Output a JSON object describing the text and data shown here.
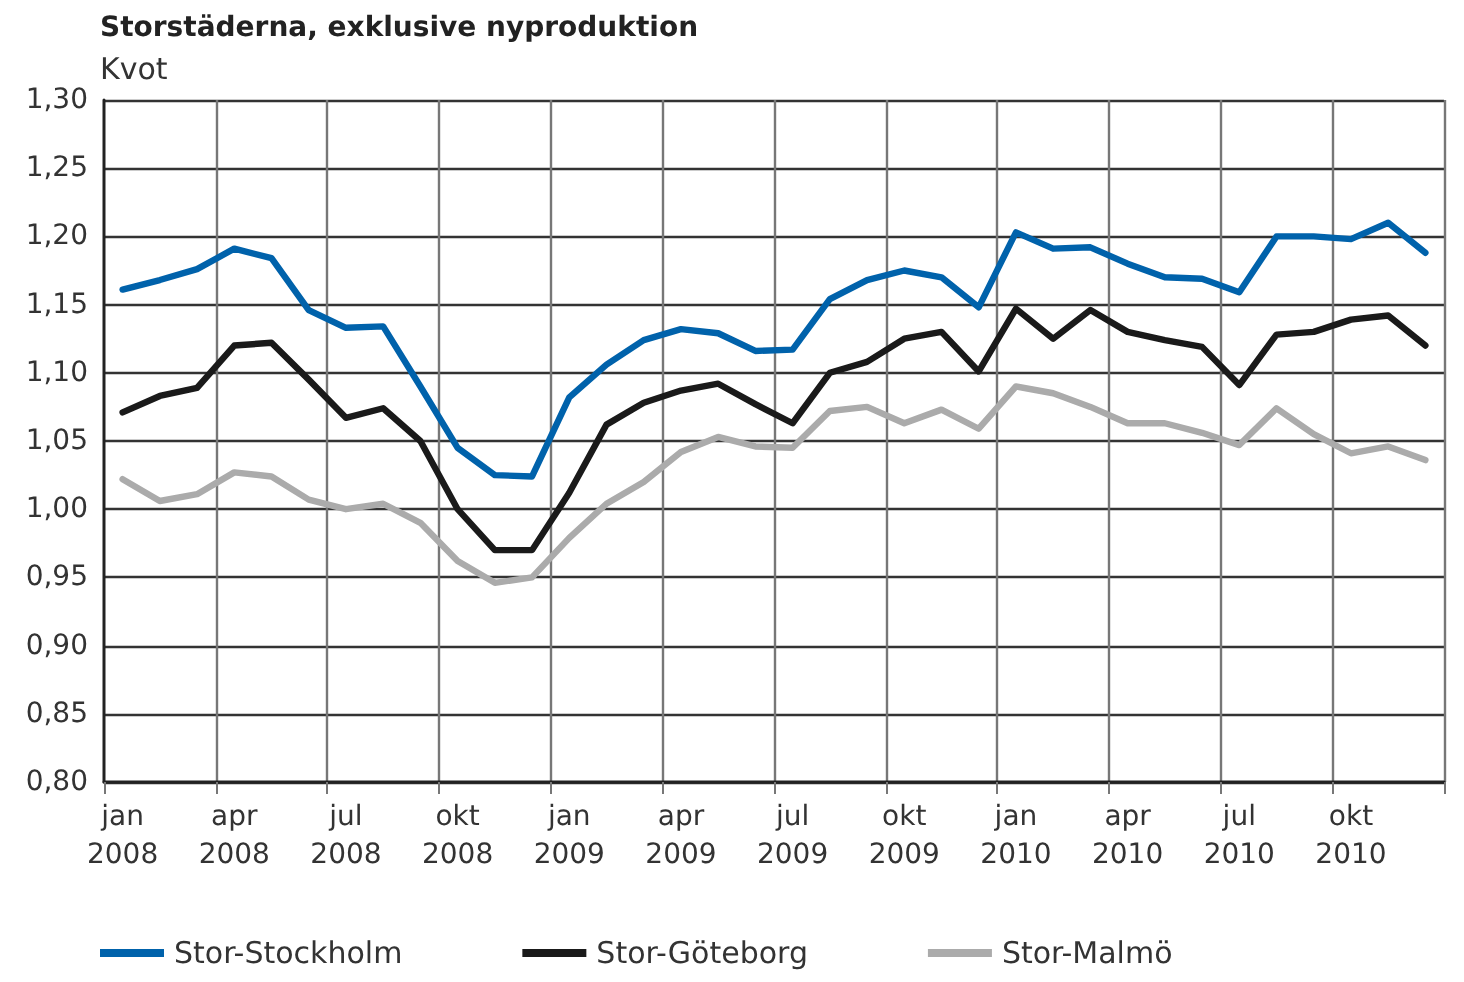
{
  "chart_data": {
    "type": "line",
    "title": "Storstäderna, exklusive nyproduktion",
    "ylabel": "Kvot",
    "categories": [
      "jan\n2008",
      null,
      null,
      "apr\n2008",
      null,
      null,
      "jul\n2008",
      null,
      null,
      "okt\n2008",
      null,
      null,
      "jan\n2009",
      null,
      null,
      "apr\n2009",
      null,
      null,
      "jul\n2009",
      null,
      null,
      "okt\n2009",
      null,
      null,
      "jan\n2010",
      null,
      null,
      "apr\n2010",
      null,
      null,
      "jul\n2010",
      null,
      null,
      "okt\n2010",
      null,
      null
    ],
    "series": [
      {
        "name": "Stor-Stockholm",
        "color": "#0062ab",
        "values": [
          1.161,
          1.168,
          1.176,
          1.191,
          1.184,
          1.146,
          1.133,
          1.134,
          1.09,
          1.045,
          1.025,
          1.024,
          1.082,
          1.106,
          1.124,
          1.132,
          1.129,
          1.116,
          1.117,
          1.154,
          1.168,
          1.175,
          1.17,
          1.148,
          1.203,
          1.191,
          1.192,
          1.18,
          1.17,
          1.169,
          1.159,
          1.2,
          1.2,
          1.198,
          1.21,
          1.188
        ]
      },
      {
        "name": "Stor-Göteborg",
        "color": "#1a1a1a",
        "values": [
          1.071,
          1.083,
          1.089,
          1.12,
          1.122,
          1.095,
          1.067,
          1.074,
          1.05,
          1.0,
          0.97,
          0.97,
          1.012,
          1.062,
          1.078,
          1.087,
          1.092,
          1.077,
          1.063,
          1.1,
          1.108,
          1.125,
          1.13,
          1.101,
          1.147,
          1.125,
          1.146,
          1.13,
          1.124,
          1.119,
          1.091,
          1.128,
          1.13,
          1.139,
          1.142,
          1.12
        ]
      },
      {
        "name": "Stor-Malmö",
        "color": "#ababab",
        "values": [
          1.022,
          1.006,
          1.011,
          1.027,
          1.024,
          1.007,
          1.0,
          1.004,
          0.99,
          0.962,
          0.946,
          0.95,
          0.979,
          1.004,
          1.02,
          1.042,
          1.053,
          1.046,
          1.045,
          1.072,
          1.075,
          1.063,
          1.073,
          1.059,
          1.09,
          1.085,
          1.075,
          1.063,
          1.063,
          1.056,
          1.047,
          1.074,
          1.055,
          1.041,
          1.046,
          1.036
        ]
      }
    ],
    "ylim": [
      0.8,
      1.3
    ],
    "yticks": [
      {
        "value": 0.8,
        "label": "0,80"
      },
      {
        "value": 0.85,
        "label": "0,85"
      },
      {
        "value": 0.9,
        "label": "0,90"
      },
      {
        "value": 0.95,
        "label": "0,95"
      },
      {
        "value": 1.0,
        "label": "1,00"
      },
      {
        "value": 1.05,
        "label": "1,05"
      },
      {
        "value": 1.1,
        "label": "1,10"
      },
      {
        "value": 1.15,
        "label": "1,15"
      },
      {
        "value": 1.2,
        "label": "1,20"
      },
      {
        "value": 1.25,
        "label": "1,25"
      },
      {
        "value": 1.3,
        "label": "1,30"
      }
    ],
    "grid": true,
    "legend": "bottom left",
    "marker": "none",
    "line_style": "solid"
  }
}
